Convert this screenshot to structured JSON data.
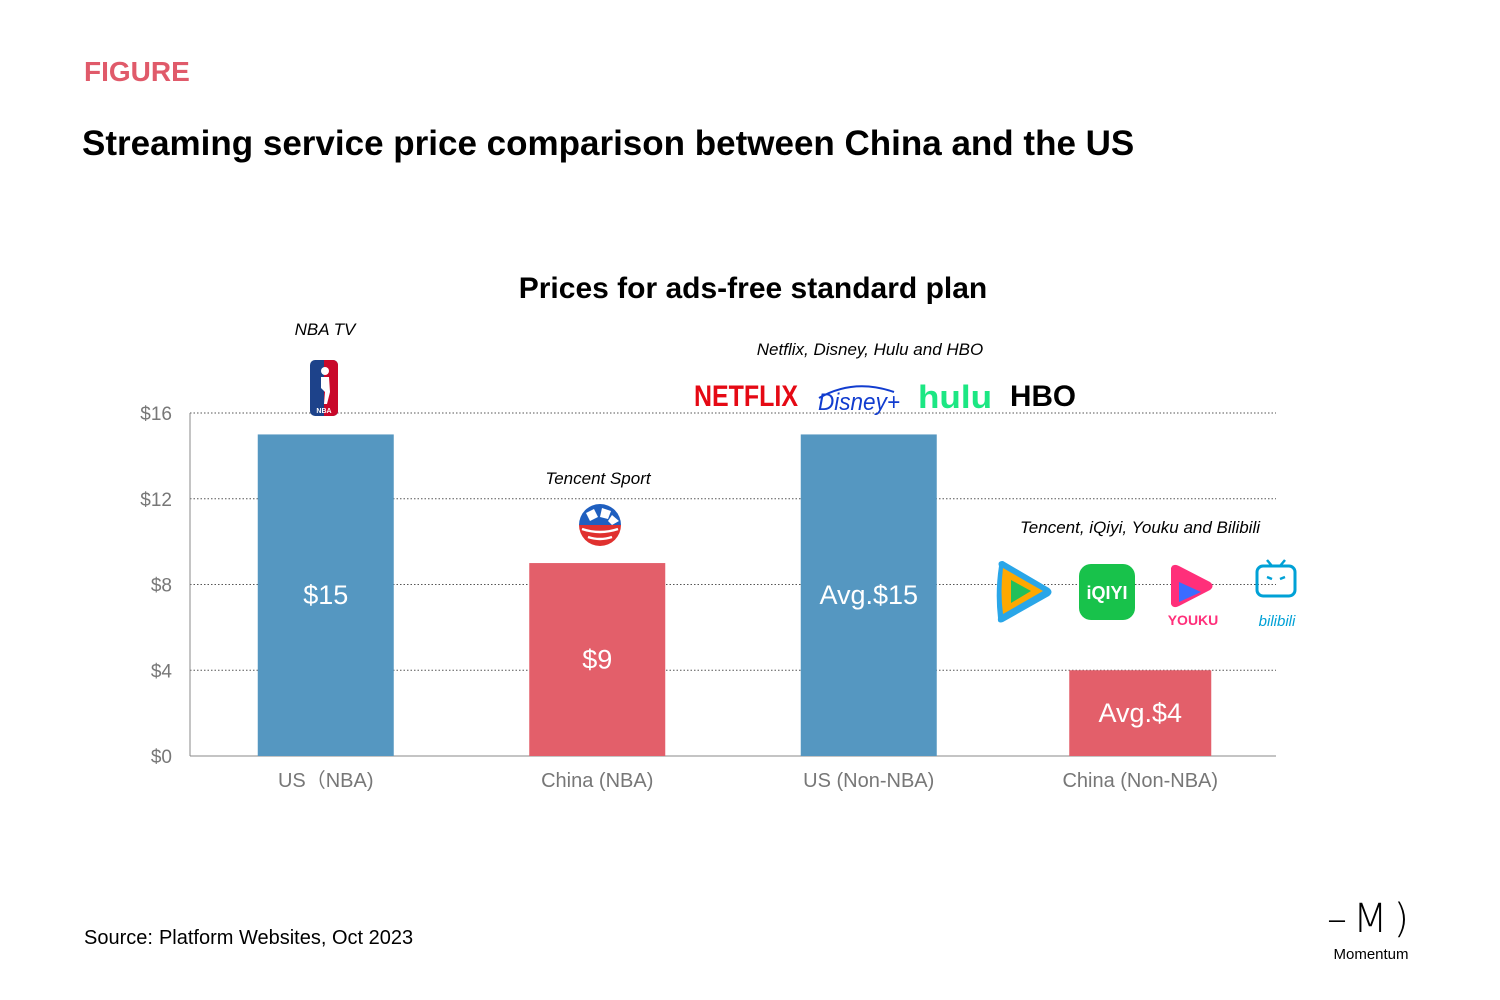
{
  "header": {
    "figure_label": "FIGURE",
    "title": "Streaming service price comparison between China and the US"
  },
  "chart_data": {
    "type": "bar",
    "title": "Prices for ads-free standard plan",
    "categories": [
      "US（NBA)",
      "China (NBA)",
      "US (Non-NBA)",
      "China (Non-NBA)"
    ],
    "values": [
      15,
      9,
      15,
      4
    ],
    "data_labels": [
      "$15",
      "$9",
      "Avg.$15",
      "Avg.$4"
    ],
    "bar_colors": [
      "#5597c1",
      "#e35f6a",
      "#5597c1",
      "#e35f6a"
    ],
    "ylim": [
      0,
      16
    ],
    "yticks": [
      0,
      4,
      8,
      12,
      16
    ],
    "ytick_labels": [
      "$0",
      "$4",
      "$8",
      "$12",
      "$16"
    ],
    "grid": true,
    "xlabel": "",
    "ylabel": "",
    "annotations": [
      {
        "category": "US（NBA)",
        "text": "NBA TV"
      },
      {
        "category": "China (NBA)",
        "text": "Tencent Sport"
      },
      {
        "category": "US (Non-NBA)",
        "text": "Netflix, Disney, Hulu and HBO"
      },
      {
        "category": "China (Non-NBA)",
        "text": "Tencent, iQiyi, Youku and Bilibili"
      }
    ]
  },
  "logos": {
    "nba": "NBA",
    "netflix": "NETFLIX",
    "disney": "Disney+",
    "hulu": "hulu",
    "hbo": "HBO",
    "iqiyi": "iQIYI",
    "youku": "YOUKU",
    "bilibili": "bilibili"
  },
  "colors": {
    "accent": "#e05a6a",
    "us_bar": "#5597c1",
    "china_bar": "#e35f6a"
  },
  "footer": {
    "source_label": "Source:",
    "source_text": "Platform Websites, Oct 2023"
  },
  "brand": {
    "mark": "–M)",
    "name": "Momentum"
  }
}
